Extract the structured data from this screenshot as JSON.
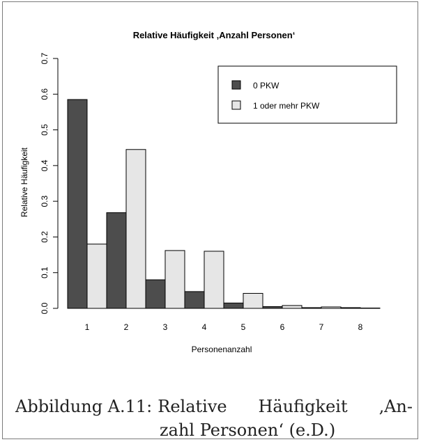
{
  "chart_data": {
    "type": "bar",
    "title": "Relative Häufigkeit ‚Anzahl Personen‘",
    "xlabel": "Personenanzahl",
    "ylabel": "Relative Häufigkeit",
    "categories": [
      "1",
      "2",
      "3",
      "4",
      "5",
      "6",
      "7",
      "8"
    ],
    "ylim": [
      0,
      0.7
    ],
    "yticks": [
      "0.0",
      "0.1",
      "0.2",
      "0.3",
      "0.4",
      "0.5",
      "0.6",
      "0.7"
    ],
    "grid": false,
    "legend_position": "top-right",
    "series": [
      {
        "name": "0 PKW",
        "color": "#4d4d4d",
        "values": [
          0.585,
          0.268,
          0.08,
          0.047,
          0.015,
          0.005,
          0.002,
          0.002
        ]
      },
      {
        "name": "1 oder mehr PKW",
        "color": "#e6e6e6",
        "values": [
          0.18,
          0.445,
          0.162,
          0.16,
          0.042,
          0.008,
          0.004,
          0.001
        ]
      }
    ]
  },
  "caption": {
    "label": "Abbildung A.11:",
    "line1_words": [
      "Relative",
      "Häufigkeit",
      "‚An-"
    ],
    "line2": "zahl Personen‘ (e.D.)"
  }
}
